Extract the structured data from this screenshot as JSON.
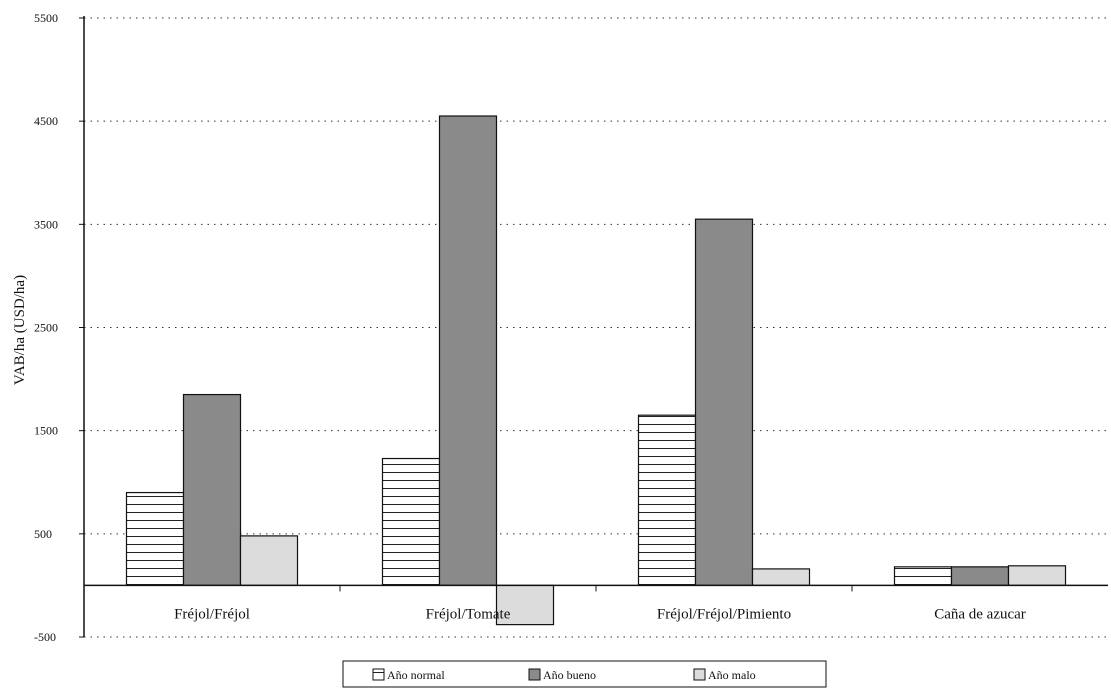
{
  "chart_data": {
    "type": "bar",
    "categories": [
      "Fréjol/Fréjol",
      "Fréjol/Tomate",
      "Fréjol/Fréjol/Pimiento",
      "Caña de azucar"
    ],
    "series": [
      {
        "name": "Año normal",
        "values": [
          900,
          1230,
          1650,
          180
        ],
        "pattern": "hlines",
        "color": "#ffffff"
      },
      {
        "name": "Año bueno",
        "values": [
          1850,
          4550,
          3550,
          180
        ],
        "pattern": "solid",
        "color": "#8a8a8a"
      },
      {
        "name": "Año malo",
        "values": [
          480,
          -380,
          160,
          190
        ],
        "pattern": "light",
        "color": "#dcdcdc"
      }
    ],
    "ylabel": "VAB/ha (USD/ha)",
    "xlabel": "",
    "ylim": [
      -500,
      5500
    ],
    "yticks": [
      -500,
      500,
      1500,
      2500,
      3500,
      4500,
      5500
    ],
    "ytick_labels": [
      "-500",
      "500",
      "1500",
      "2500",
      "3500",
      "4500",
      "5500"
    ],
    "grid": true,
    "legend_position": "bottom"
  }
}
